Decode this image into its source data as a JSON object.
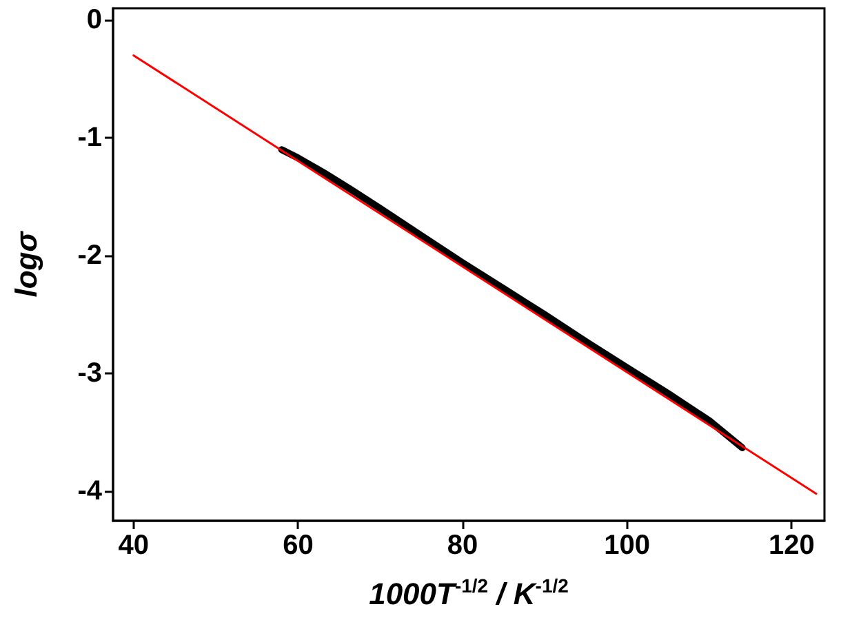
{
  "chart_data": {
    "type": "line",
    "xlabel": "1000T$^{-1/2}$ / K$^{-1/2}$",
    "ylabel": "logσ",
    "series": [
      {
        "color": "#000000",
        "x": [
          58,
          60,
          63,
          66,
          70,
          75,
          80,
          85,
          90,
          95,
          100,
          105,
          110,
          114
        ],
        "values": [
          -1.1,
          -1.17,
          -1.29,
          -1.42,
          -1.6,
          -1.83,
          -2.06,
          -2.28,
          -2.5,
          -2.73,
          -2.95,
          -3.17,
          -3.4,
          -3.63
        ]
      },
      {
        "color": "#ff0000",
        "x": [
          40,
          123
        ],
        "values": [
          -0.3,
          -4.02
        ]
      }
    ],
    "xlim": [
      37.5,
      124
    ],
    "xticks": [
      40,
      60,
      80,
      100,
      120
    ],
    "ylim": [
      -4.25,
      0.1
    ],
    "yticks": [
      0,
      -1,
      -2,
      -3,
      -4
    ],
    "grid": false,
    "marker": "none",
    "line_style": "solid"
  }
}
